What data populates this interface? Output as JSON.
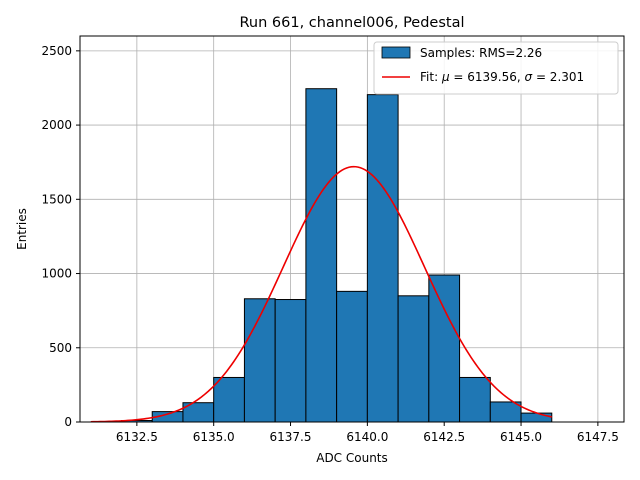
{
  "chart_data": {
    "type": "bar",
    "title": "Run 661, channel006, Pedestal",
    "xlabel": "ADC Counts",
    "ylabel": "Entries",
    "xlim": [
      6130.65,
      6148.35
    ],
    "ylim": [
      0,
      2600
    ],
    "grid": true,
    "legend_placement": "top-right",
    "x_ticks": [
      6132.5,
      6135.0,
      6137.5,
      6140.0,
      6142.5,
      6145.0,
      6147.5
    ],
    "x_tick_labels": [
      "6132.5",
      "6135.0",
      "6137.5",
      "6140.0",
      "6142.5",
      "6145.0",
      "6147.5"
    ],
    "y_ticks": [
      0,
      500,
      1000,
      1500,
      2000,
      2500
    ],
    "y_tick_labels": [
      "0",
      "500",
      "1000",
      "1500",
      "2000",
      "2500"
    ],
    "bins": [
      {
        "x0": 6132.0,
        "x1": 6133.0,
        "value": 10
      },
      {
        "x0": 6133.0,
        "x1": 6134.0,
        "value": 70
      },
      {
        "x0": 6134.0,
        "x1": 6135.0,
        "value": 130
      },
      {
        "x0": 6135.0,
        "x1": 6136.0,
        "value": 300
      },
      {
        "x0": 6136.0,
        "x1": 6137.0,
        "value": 830
      },
      {
        "x0": 6137.0,
        "x1": 6138.0,
        "value": 825
      },
      {
        "x0": 6138.0,
        "x1": 6139.0,
        "value": 2245
      },
      {
        "x0": 6139.0,
        "x1": 6140.0,
        "value": 880
      },
      {
        "x0": 6140.0,
        "x1": 6141.0,
        "value": 2205
      },
      {
        "x0": 6141.0,
        "x1": 6142.0,
        "value": 850
      },
      {
        "x0": 6142.0,
        "x1": 6143.0,
        "value": 990
      },
      {
        "x0": 6143.0,
        "x1": 6144.0,
        "value": 300
      },
      {
        "x0": 6144.0,
        "x1": 6145.0,
        "value": 135
      },
      {
        "x0": 6145.0,
        "x1": 6146.0,
        "value": 60
      }
    ],
    "fit": {
      "mu": 6139.56,
      "sigma": 2.301,
      "amplitude": 1720,
      "x_range": [
        6131.0,
        6146.0
      ]
    },
    "series": [
      {
        "name": "Samples: RMS=2.26",
        "kind": "histogram",
        "color": "#1f77b4"
      },
      {
        "name_prefix": "Fit: ",
        "name_mu": "μ",
        "name_mid": " = 6139.56, ",
        "name_sigma": "σ",
        "name_suffix": " = 2.301",
        "kind": "line",
        "color": "#ee0000"
      }
    ]
  }
}
